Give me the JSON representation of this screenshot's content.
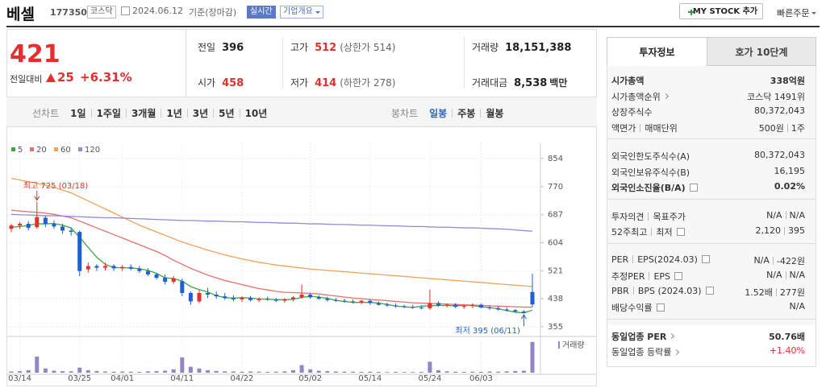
{
  "header": {
    "name": "베셀",
    "code": "177350",
    "market": "코스닥",
    "date": "2024.06.12",
    "basis": "기준(장마감)",
    "realtime": "실시간",
    "overview": "기업개요",
    "mystock": "MY STOCK 추가",
    "quick_order": "빠른주문"
  },
  "quote": {
    "price": "421",
    "change_label": "전일대비",
    "change": "25",
    "change_pct": "+6.31%"
  },
  "summary": [
    [
      {
        "label": "전일",
        "value": "396",
        "color": "#222"
      },
      {
        "label": "고가",
        "value": "512",
        "note": "(상한가 514)",
        "color": "#e52e2e"
      },
      {
        "label": "거래량",
        "value": "18,151,388",
        "color": "#222"
      }
    ],
    [
      {
        "label": "시가",
        "value": "458",
        "color": "#e52e2e"
      },
      {
        "label": "저가",
        "value": "414",
        "note": "(하한가 278)",
        "color": "#e52e2e"
      },
      {
        "label": "거래대금",
        "value": "8,538",
        "unit": "백만",
        "color": "#222"
      }
    ]
  ],
  "periods": {
    "line_label": "선차트",
    "line": [
      "1일",
      "1주일",
      "3개월",
      "1년",
      "3년",
      "5년",
      "10년"
    ],
    "candle_label": "봉차트",
    "candle": [
      "일봉",
      "주봉",
      "월봉"
    ],
    "active_candle": 0
  },
  "tabs": [
    "투자정보",
    "호가 10단계"
  ],
  "invest": [
    [
      {
        "label": [
          "시가총액"
        ],
        "value": [
          "338억원"
        ],
        "bold": true
      },
      {
        "label": [
          "시가총액순위"
        ],
        "value": [
          "코스닥 1491위"
        ],
        "arrow": true
      },
      {
        "label": [
          "상장주식수"
        ],
        "value": [
          "80,372,043"
        ]
      },
      {
        "label": [
          "액면가",
          "매매단위"
        ],
        "value": [
          "500원",
          "1주"
        ]
      }
    ],
    [
      {
        "label": [
          "외국인한도주식수(A)"
        ],
        "value": [
          "80,372,043"
        ]
      },
      {
        "label": [
          "외국인보유주식수(B)"
        ],
        "value": [
          "16,195"
        ]
      },
      {
        "label": [
          "외국인소진율(B/A)"
        ],
        "value": [
          "0.02%"
        ],
        "bold": true,
        "help": true
      }
    ],
    [
      {
        "label": [
          "투자의견",
          "목표주가"
        ],
        "value": [
          "N/A",
          "N/A"
        ]
      },
      {
        "label": [
          "52주최고",
          "최저"
        ],
        "value": [
          "2,120",
          "395"
        ],
        "help": true
      }
    ],
    [
      {
        "label": [
          "PER",
          "EPS(2024.03)"
        ],
        "value": [
          "N/A",
          "-422원"
        ],
        "help": true
      },
      {
        "label": [
          "추정PER",
          "EPS"
        ],
        "value": [
          "N/A",
          "N/A"
        ],
        "help": true
      },
      {
        "label": [
          "PBR",
          "BPS (2024.03)"
        ],
        "value": [
          "1.52배",
          "277원"
        ],
        "help": true
      },
      {
        "label": [
          "배당수익률"
        ],
        "value": [
          "N/A"
        ],
        "help": true
      }
    ],
    [
      {
        "label": [
          "동일업종 PER"
        ],
        "value": [
          "50.76배"
        ],
        "bold": true,
        "arrow": true
      },
      {
        "label": [
          "동일업종 등락률"
        ],
        "value": [
          "+1.40%"
        ],
        "arrow": true,
        "color": "#e52e2e"
      }
    ]
  ],
  "chart": {
    "type": "candlestick",
    "up_color": "#e52e2e",
    "down_color": "#1f5fd1",
    "volume_color": "#9485c6",
    "volume_label": "거래량",
    "ylim": [
      326,
      894
    ],
    "yticks": [
      854,
      770,
      687,
      604,
      521,
      438,
      355
    ],
    "volume_lim": [
      0,
      19000000
    ],
    "categories": [
      null,
      "03/14",
      null,
      null,
      null,
      null,
      null,
      null,
      "03/25",
      null,
      null,
      null,
      null,
      "04/01",
      null,
      null,
      null,
      null,
      null,
      null,
      "04/11",
      null,
      null,
      null,
      null,
      null,
      null,
      "04/22",
      null,
      null,
      null,
      null,
      null,
      null,
      null,
      "05/02",
      null,
      null,
      null,
      null,
      null,
      null,
      "05/14",
      null,
      null,
      null,
      null,
      null,
      null,
      "05/24",
      null,
      null,
      null,
      null,
      null,
      "06/03",
      null,
      null,
      null,
      null,
      null,
      null
    ],
    "candles": [
      [
        645,
        660,
        635,
        655
      ],
      [
        655,
        665,
        645,
        660
      ],
      [
        660,
        668,
        640,
        648
      ],
      [
        650,
        725,
        645,
        680
      ],
      [
        678,
        685,
        650,
        660
      ],
      [
        660,
        670,
        645,
        652
      ],
      [
        652,
        660,
        630,
        640
      ],
      [
        640,
        648,
        625,
        636
      ],
      [
        636,
        640,
        505,
        520
      ],
      [
        525,
        545,
        515,
        535
      ],
      [
        535,
        540,
        520,
        530
      ],
      [
        530,
        545,
        522,
        535
      ],
      [
        535,
        540,
        520,
        528
      ],
      [
        528,
        538,
        520,
        532
      ],
      [
        532,
        540,
        522,
        527
      ],
      [
        527,
        535,
        515,
        520
      ],
      [
        520,
        528,
        505,
        510
      ],
      [
        510,
        515,
        495,
        500
      ],
      [
        500,
        510,
        480,
        488
      ],
      [
        488,
        505,
        482,
        498
      ],
      [
        490,
        498,
        445,
        455
      ],
      [
        455,
        460,
        420,
        430
      ],
      [
        430,
        465,
        425,
        455
      ],
      [
        455,
        470,
        440,
        450
      ],
      [
        450,
        460,
        438,
        445
      ],
      [
        445,
        455,
        435,
        440
      ],
      [
        440,
        448,
        430,
        436
      ],
      [
        436,
        445,
        428,
        440
      ],
      [
        440,
        446,
        430,
        434
      ],
      [
        434,
        442,
        428,
        438
      ],
      [
        438,
        444,
        432,
        435
      ],
      [
        435,
        440,
        428,
        432
      ],
      [
        432,
        440,
        426,
        436
      ],
      [
        436,
        446,
        430,
        442
      ],
      [
        442,
        480,
        438,
        450
      ],
      [
        450,
        455,
        438,
        442
      ],
      [
        442,
        448,
        435,
        438
      ],
      [
        438,
        444,
        430,
        434
      ],
      [
        434,
        440,
        428,
        432
      ],
      [
        432,
        438,
        426,
        430
      ],
      [
        430,
        436,
        424,
        428
      ],
      [
        428,
        434,
        422,
        432
      ],
      [
        432,
        436,
        420,
        425
      ],
      [
        425,
        430,
        418,
        420
      ],
      [
        420,
        426,
        414,
        418
      ],
      [
        418,
        424,
        412,
        416
      ],
      [
        416,
        420,
        410,
        414
      ],
      [
        414,
        420,
        408,
        412
      ],
      [
        412,
        418,
        406,
        410
      ],
      [
        410,
        465,
        405,
        425
      ],
      [
        425,
        430,
        414,
        418
      ],
      [
        418,
        424,
        412,
        420
      ],
      [
        420,
        425,
        410,
        414
      ],
      [
        414,
        420,
        408,
        416
      ],
      [
        416,
        424,
        410,
        420
      ],
      [
        420,
        424,
        410,
        412
      ],
      [
        412,
        418,
        405,
        410
      ],
      [
        410,
        416,
        402,
        406
      ],
      [
        406,
        412,
        400,
        404
      ],
      [
        404,
        408,
        398,
        400
      ],
      [
        400,
        404,
        395,
        396
      ],
      [
        458,
        512,
        414,
        421
      ]
    ],
    "volumes": [
      700000,
      900000,
      1500000,
      9500000,
      2500000,
      1200000,
      900000,
      800000,
      3000000,
      1500000,
      1000000,
      700000,
      600000,
      700000,
      600000,
      500000,
      800000,
      900000,
      1200000,
      2000000,
      9000000,
      3500000,
      2500000,
      1500000,
      1000000,
      800000,
      700000,
      600000,
      700000,
      600000,
      500000,
      600000,
      800000,
      1500000,
      4500000,
      2000000,
      1200000,
      900000,
      700000,
      600000,
      600000,
      500000,
      600000,
      500000,
      400000,
      500000,
      400000,
      400000,
      500000,
      6500000,
      1500000,
      800000,
      600000,
      500000,
      600000,
      500000,
      700000,
      600000,
      800000,
      1000000,
      1200000,
      18151388
    ],
    "ma": [
      {
        "name": "5",
        "color": "#3aa845",
        "values": [
          650,
          652,
          655,
          660,
          660,
          661,
          656,
          648,
          620,
          590,
          561,
          540,
          530,
          530,
          529,
          527,
          522,
          513,
          500,
          498,
          490,
          474,
          465,
          458,
          447,
          441,
          440,
          441,
          440,
          437,
          437,
          435,
          435,
          436,
          442,
          445,
          443,
          439,
          433,
          430,
          427,
          427,
          427,
          425,
          421,
          416,
          414,
          412,
          416,
          417,
          418,
          418,
          417,
          418,
          418,
          414,
          412,
          408,
          403,
          398,
          396,
          404
        ]
      },
      {
        "name": "20",
        "color": "#e8706d",
        "values": [
          700,
          698,
          696,
          694,
          692,
          688,
          683,
          678,
          668,
          658,
          648,
          638,
          628,
          618,
          608,
          598,
          588,
          578,
          566,
          552,
          540,
          528,
          518,
          508,
          500,
          492,
          486,
          480,
          474,
          468,
          464,
          460,
          457,
          456,
          455,
          454,
          452,
          449,
          446,
          443,
          440,
          438,
          436,
          434,
          432,
          430,
          428,
          426,
          425,
          424,
          423,
          422,
          421,
          420,
          419,
          418,
          417,
          416,
          415,
          414,
          413,
          413
        ]
      },
      {
        "name": "60",
        "color": "#f2a25a",
        "values": [
          795,
          790,
          785,
          780,
          775,
          768,
          760,
          752,
          740,
          728,
          716,
          704,
          692,
          680,
          668,
          656,
          646,
          636,
          626,
          616,
          606,
          598,
          590,
          582,
          575,
          568,
          562,
          556,
          551,
          546,
          542,
          538,
          535,
          532,
          529,
          526,
          524,
          522,
          520,
          518,
          516,
          514,
          512,
          510,
          508,
          506,
          504,
          502,
          500,
          498,
          496,
          494,
          492,
          490,
          488,
          486,
          484,
          482,
          480,
          478,
          476,
          474
        ]
      },
      {
        "name": "120",
        "color": "#9a86d8",
        "values": [
          688,
          687,
          686,
          685,
          684,
          684,
          683,
          682,
          681,
          680,
          679,
          678,
          678,
          677,
          676,
          675,
          674,
          673,
          672,
          671,
          670,
          670,
          669,
          668,
          668,
          667,
          666,
          666,
          665,
          664,
          664,
          663,
          662,
          662,
          661,
          660,
          660,
          659,
          658,
          658,
          657,
          656,
          656,
          655,
          654,
          654,
          653,
          652,
          652,
          651,
          650,
          650,
          649,
          648,
          648,
          647,
          646,
          645,
          644,
          642,
          640,
          638
        ]
      }
    ],
    "annotations": [
      {
        "text": "최고 725 (03/18)",
        "index": 3,
        "value": 725,
        "color": "#e52e2e"
      },
      {
        "text": "최저 395 (06/11)",
        "index": 60,
        "value": 395,
        "color": "#1f5fd1"
      }
    ]
  }
}
